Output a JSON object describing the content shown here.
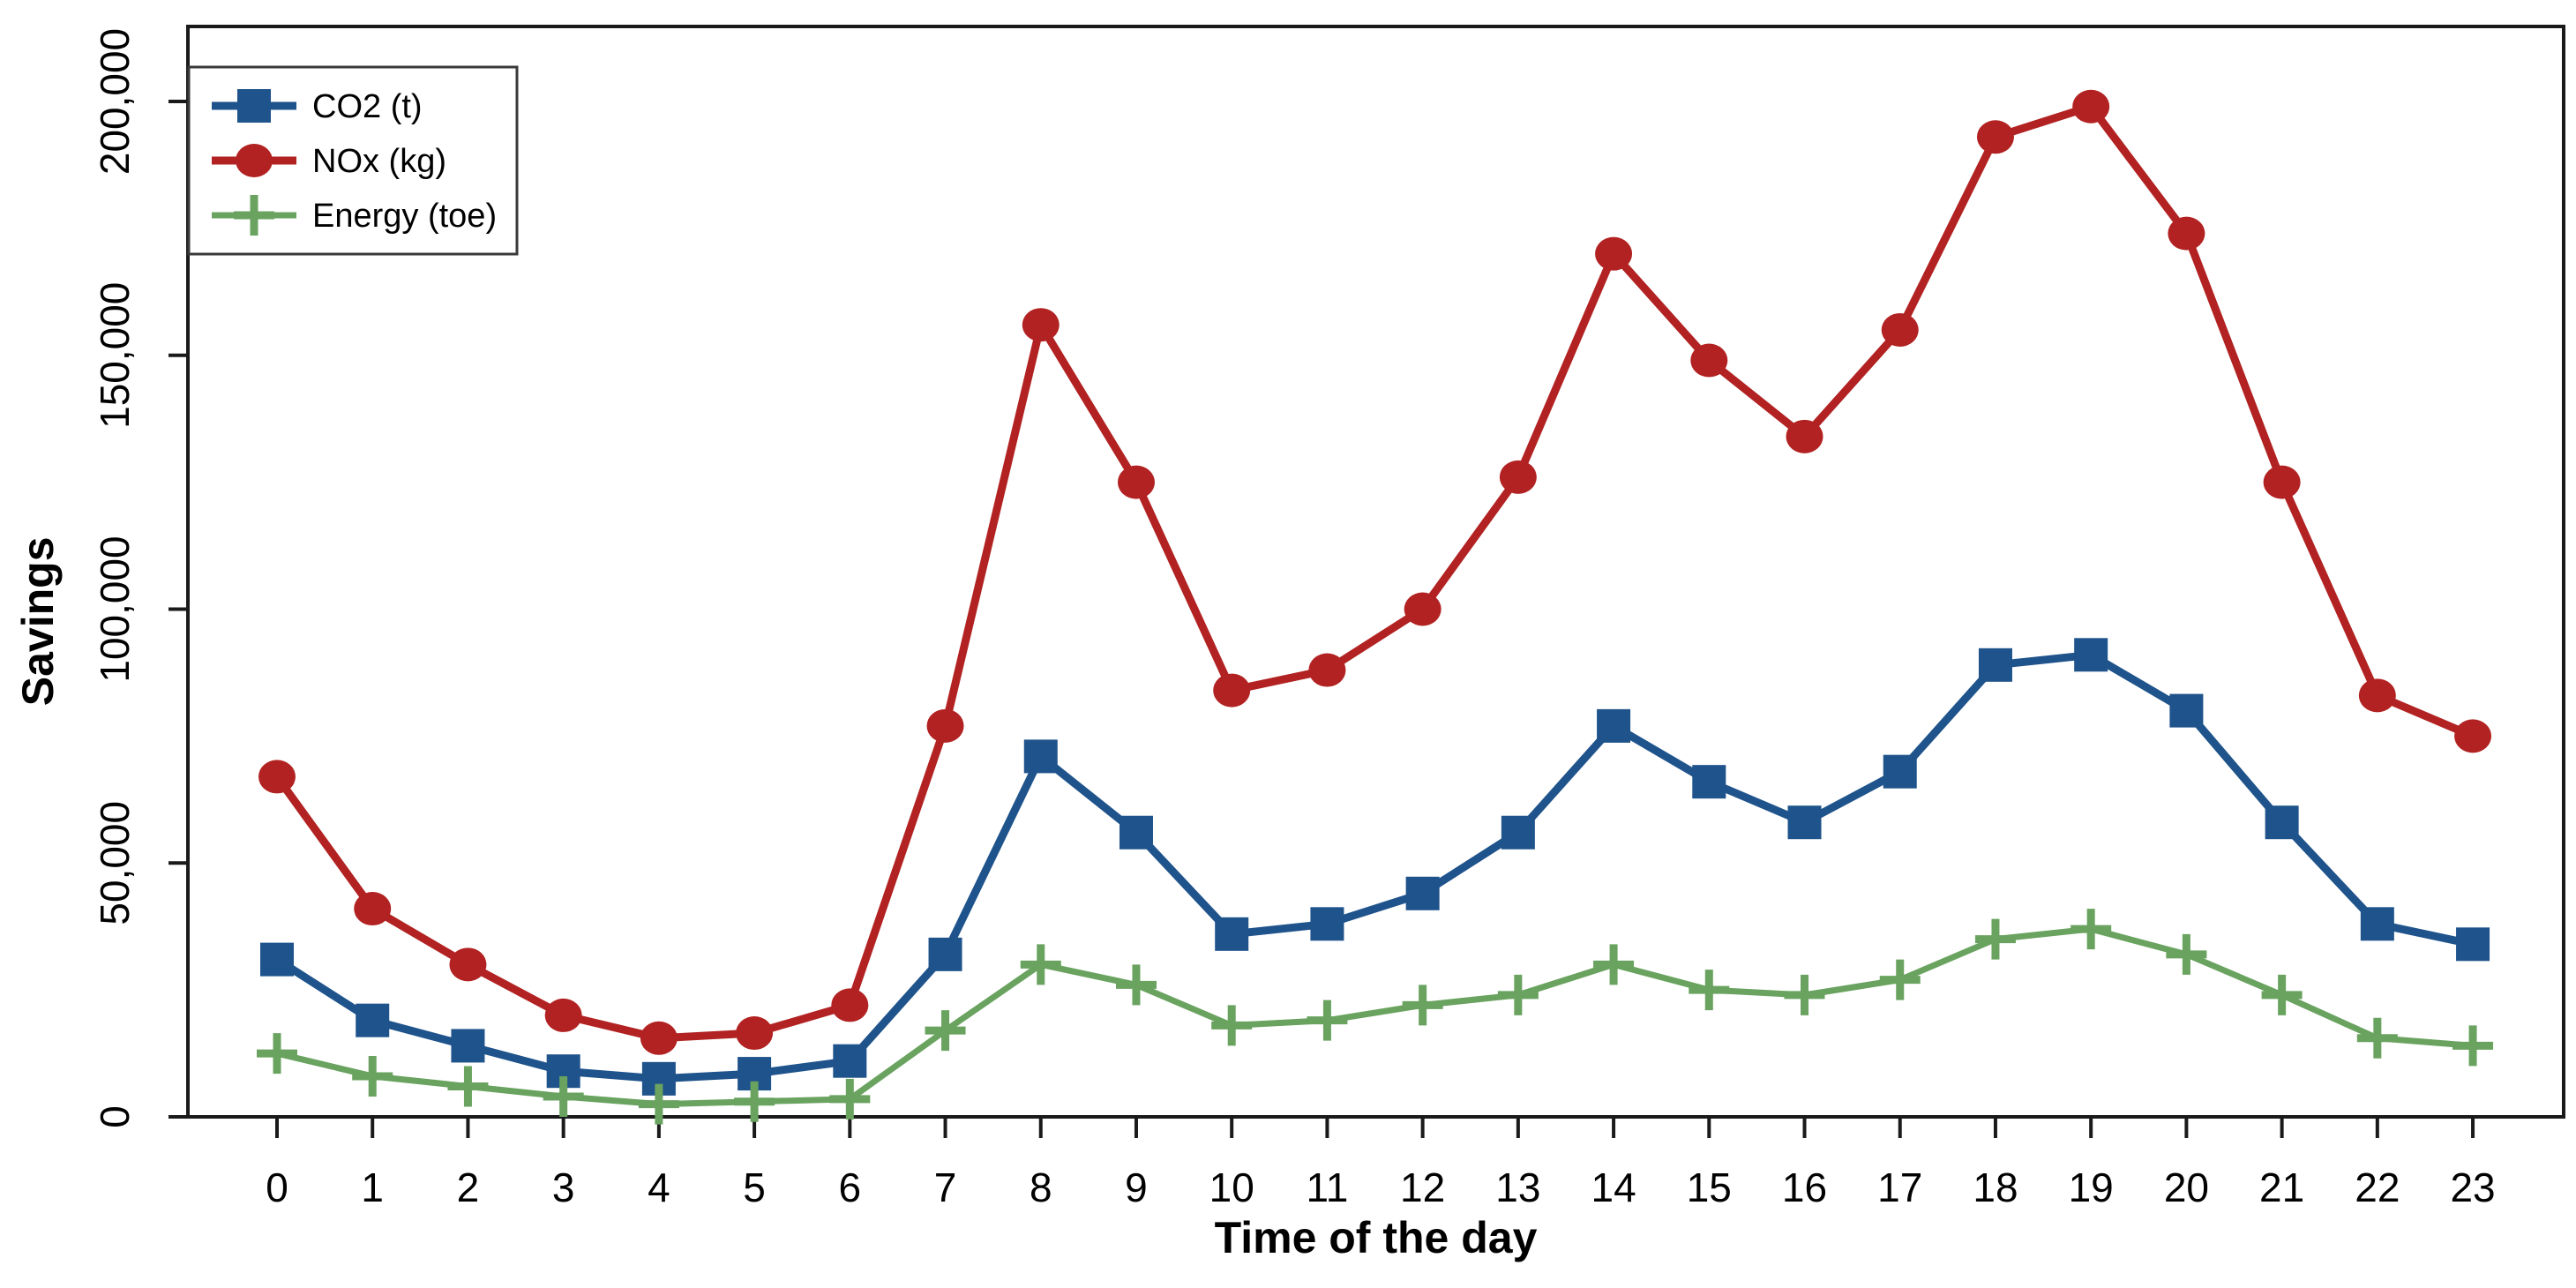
{
  "chart_data": {
    "type": "line",
    "title": "",
    "xlabel": "Time of the day",
    "ylabel": "Savings",
    "x": [
      0,
      1,
      2,
      3,
      4,
      5,
      6,
      7,
      8,
      9,
      10,
      11,
      12,
      13,
      14,
      15,
      16,
      17,
      18,
      19,
      20,
      21,
      22,
      23
    ],
    "ylim": [
      0,
      200000
    ],
    "yticks": [
      0,
      50000,
      100000,
      150000,
      200000
    ],
    "ytick_labels": [
      "0",
      "50,000",
      "100,000",
      "150,000",
      "200,000"
    ],
    "grid": "off",
    "legend_position": "top-left-inside",
    "series": [
      {
        "name": "CO2 (t)",
        "marker": "square",
        "color": "#1f538b",
        "values": [
          31000,
          19000,
          14000,
          9000,
          7500,
          8500,
          11000,
          32000,
          71000,
          56000,
          36000,
          38000,
          44000,
          56000,
          77000,
          66000,
          58000,
          68000,
          89000,
          91000,
          80000,
          58000,
          38000,
          34000
        ]
      },
      {
        "name": "NOx (kg)",
        "marker": "circle",
        "color": "#b22222",
        "values": [
          67000,
          41000,
          30000,
          20000,
          15500,
          16500,
          22000,
          77000,
          156000,
          125000,
          84000,
          88000,
          100000,
          126000,
          170000,
          149000,
          134000,
          155000,
          193000,
          199000,
          174000,
          125000,
          83000,
          75000
        ]
      },
      {
        "name": "Energy (toe)",
        "marker": "plus",
        "color": "#69a35f",
        "values": [
          12500,
          8000,
          6000,
          4000,
          2500,
          3000,
          3500,
          17000,
          30000,
          26000,
          18000,
          19000,
          22000,
          24000,
          30000,
          25000,
          24000,
          27000,
          35000,
          37000,
          32000,
          24000,
          15500,
          14000
        ]
      }
    ],
    "axis_color": "#1a1a1a",
    "text_color": "#000000"
  }
}
